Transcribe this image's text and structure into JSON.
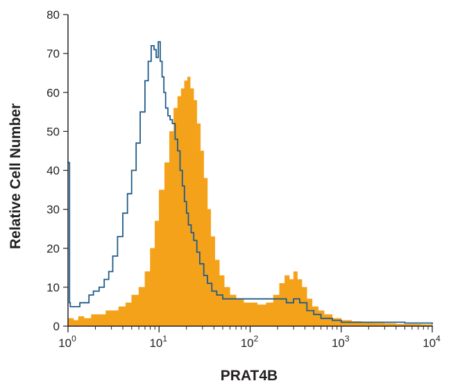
{
  "chart_data": {
    "type": "area",
    "xlabel": "PRAT4B",
    "ylabel": "Relative Cell Number",
    "xscale": "log",
    "xlim": [
      1,
      10000
    ],
    "ylim": [
      0,
      80
    ],
    "x_ticks": [
      {
        "value": 1,
        "base": "10",
        "exp": "0"
      },
      {
        "value": 10,
        "base": "10",
        "exp": "1"
      },
      {
        "value": 100,
        "base": "10",
        "exp": "2"
      },
      {
        "value": 1000,
        "base": "10",
        "exp": "3"
      },
      {
        "value": 10000,
        "base": "10",
        "exp": "4"
      }
    ],
    "y_ticks": [
      0,
      10,
      20,
      30,
      40,
      50,
      60,
      70,
      80
    ],
    "series": [
      {
        "style": "filled",
        "color": "#f5a21b",
        "x": [
          1,
          1.15,
          1.3,
          1.5,
          1.8,
          2.2,
          2.6,
          3.0,
          3.6,
          4.3,
          5.0,
          6.0,
          7.0,
          8.0,
          9.0,
          10.0,
          11.5,
          13.0,
          14.5,
          16.0,
          17.5,
          19.0,
          20.5,
          22.0,
          24.0,
          26.0,
          28.5,
          31.0,
          34.0,
          37.0,
          41.0,
          46.0,
          52.0,
          60.0,
          70.0,
          85.0,
          100,
          120,
          150,
          180,
          210,
          240,
          270,
          300,
          330,
          370,
          420,
          480,
          560,
          650,
          800,
          1000,
          1300,
          1700,
          2300,
          3000,
          4000,
          5500,
          7500,
          10000
        ],
        "y": [
          2,
          1.5,
          2.5,
          2,
          3,
          3,
          4,
          4,
          5,
          6,
          8,
          10,
          14,
          20,
          27,
          35,
          42,
          50,
          56,
          59,
          61,
          63,
          64,
          61,
          58,
          52,
          45,
          38,
          30,
          23,
          17,
          13,
          10,
          8,
          7,
          6,
          6,
          5.5,
          6,
          8,
          11,
          13,
          12,
          14,
          12,
          10,
          7,
          5,
          4,
          3,
          2,
          1.5,
          1.2,
          1,
          0.8,
          0.7,
          0.5,
          0.5,
          0.4,
          0.3
        ]
      },
      {
        "style": "outline",
        "color": "#1e5b8a",
        "x": [
          1,
          1.04,
          1.06,
          1.1,
          1.2,
          1.35,
          1.5,
          1.7,
          1.9,
          2.2,
          2.5,
          2.8,
          3.1,
          3.5,
          4.0,
          4.5,
          5.0,
          5.6,
          6.2,
          7.0,
          7.6,
          8.2,
          8.8,
          9.3,
          9.8,
          10.3,
          10.8,
          11.3,
          11.8,
          12.5,
          13.2,
          14.0,
          15.0,
          16.0,
          17.0,
          18.0,
          19.0,
          20.0,
          21.0,
          22.5,
          24.0,
          26.0,
          28.0,
          31.0,
          34.0,
          38.0,
          43.0,
          50.0,
          60.0,
          75.0,
          90.0,
          110,
          130,
          160,
          200,
          250,
          300,
          350,
          420,
          500,
          600,
          800,
          1000,
          1300,
          1800,
          2500,
          3500,
          5000,
          7000,
          10000
        ],
        "y": [
          42,
          6,
          5,
          5,
          5,
          6,
          6,
          8,
          9,
          10,
          12,
          14,
          18,
          23,
          29,
          34,
          40,
          47,
          55,
          63,
          68,
          72,
          71,
          69,
          73,
          68,
          64,
          60,
          56,
          54,
          53,
          52,
          48,
          45,
          40,
          36,
          32,
          29,
          26,
          24,
          22,
          19,
          16,
          13,
          11,
          9,
          8,
          7,
          7,
          7,
          7,
          7,
          7,
          7,
          7,
          6,
          7,
          6,
          4,
          3,
          2,
          1.5,
          1,
          1,
          1,
          1,
          1,
          0.8,
          0.8,
          0.5
        ]
      }
    ]
  }
}
